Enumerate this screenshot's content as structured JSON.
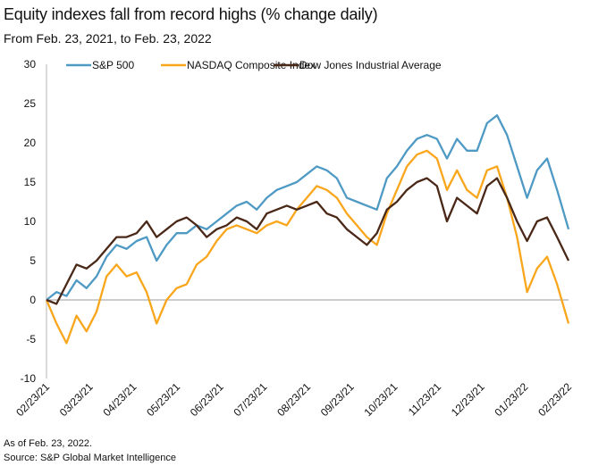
{
  "chart_data": {
    "type": "line",
    "title": "Equity indexes fall from record highs (% change daily)",
    "subtitle": "From Feb. 23, 2021, to Feb. 23, 2022",
    "xlabel": "",
    "ylabel": "",
    "ylim": [
      -10,
      30
    ],
    "yticks": [
      "30",
      "25",
      "20",
      "15",
      "10",
      "5",
      "0",
      "-5",
      "-10"
    ],
    "xticks": [
      "02/23/21",
      "03/23/21",
      "04/23/21",
      "05/23/21",
      "06/23/21",
      "07/23/21",
      "08/23/21",
      "09/23/21",
      "10/23/21",
      "11/23/21",
      "12/23/21",
      "01/23/22",
      "02/23/22"
    ],
    "grid": false,
    "legend_position": "top",
    "x": [
      "2021-02-23",
      "2021-03-02",
      "2021-03-09",
      "2021-03-16",
      "2021-03-23",
      "2021-03-30",
      "2021-04-06",
      "2021-04-13",
      "2021-04-20",
      "2021-04-27",
      "2021-05-04",
      "2021-05-11",
      "2021-05-18",
      "2021-05-25",
      "2021-06-01",
      "2021-06-08",
      "2021-06-15",
      "2021-06-22",
      "2021-06-29",
      "2021-07-06",
      "2021-07-13",
      "2021-07-20",
      "2021-07-27",
      "2021-08-03",
      "2021-08-10",
      "2021-08-17",
      "2021-08-24",
      "2021-08-31",
      "2021-09-07",
      "2021-09-14",
      "2021-09-21",
      "2021-09-28",
      "2021-10-05",
      "2021-10-12",
      "2021-10-19",
      "2021-10-26",
      "2021-11-02",
      "2021-11-09",
      "2021-11-16",
      "2021-11-23",
      "2021-11-30",
      "2021-12-07",
      "2021-12-14",
      "2021-12-21",
      "2021-12-28",
      "2022-01-04",
      "2022-01-11",
      "2022-01-18",
      "2022-01-25",
      "2022-02-01",
      "2022-02-08",
      "2022-02-15",
      "2022-02-23"
    ],
    "series": [
      {
        "name": "S&P 500",
        "color": "#4f9ac4",
        "values": [
          0,
          1,
          0.5,
          2.5,
          1.5,
          3,
          5.5,
          7,
          6.5,
          7.5,
          8,
          5,
          7,
          8.5,
          8.5,
          9.5,
          9,
          10,
          11,
          12,
          12.5,
          11.5,
          13,
          14,
          14.5,
          15,
          16,
          17,
          16.5,
          15.5,
          13,
          12.5,
          12,
          11.5,
          15.5,
          17,
          19,
          20.5,
          21,
          20.5,
          18,
          20.5,
          19,
          19,
          22.5,
          23.5,
          21,
          17,
          13,
          16.5,
          18,
          14,
          9
        ]
      },
      {
        "name": "NASDAQ Composite Index",
        "color": "#f9a61c",
        "values": [
          0,
          -3,
          -5.5,
          -2,
          -4,
          -1.5,
          3,
          4.5,
          3,
          3.5,
          1,
          -3,
          0,
          1.5,
          2,
          4.5,
          5.5,
          7.5,
          9,
          9.5,
          9,
          8.5,
          9.5,
          10,
          9.5,
          11.5,
          13,
          14.5,
          14,
          13,
          11,
          9.5,
          8,
          7,
          11,
          14,
          17,
          18.5,
          19,
          18,
          14,
          16.5,
          14,
          13,
          16.5,
          17,
          13,
          8,
          1,
          4,
          5.5,
          2,
          -3
        ]
      },
      {
        "name": "Dow Jones Industrial Average",
        "color": "#4a2818",
        "values": [
          0,
          -0.5,
          2,
          4.5,
          4,
          5,
          6.5,
          8,
          8,
          8.5,
          10,
          8,
          9,
          10,
          10.5,
          9.5,
          8,
          9,
          9.5,
          10.5,
          10,
          9,
          11,
          11.5,
          12,
          11.5,
          12,
          12.5,
          11,
          10.5,
          9,
          8,
          7,
          8.5,
          11.5,
          12.5,
          14,
          15,
          15.5,
          14.5,
          10,
          13,
          12,
          11,
          14.5,
          15.5,
          13,
          10,
          7.5,
          10,
          10.5,
          8,
          5
        ]
      }
    ]
  },
  "footer": {
    "note": "As of Feb. 23, 2022.",
    "source": "Source: S&P Global Market Intelligence"
  }
}
